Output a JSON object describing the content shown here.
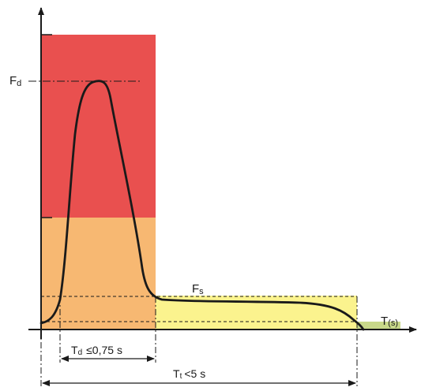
{
  "labels": {
    "fd_main": "F",
    "fd_sub": "d",
    "fs_main": "F",
    "fs_sub": "s",
    "t_axis_main": "T",
    "t_axis_sub": "(s)",
    "td_main": "T",
    "td_sub": "d",
    "td_value": "≤0,75 s",
    "tt_main": "T",
    "tt_sub": "t",
    "tt_value": "<5 s"
  },
  "colors": {
    "red_zone": "#e9504f",
    "orange_zone": "#f7b872",
    "yellow_zone": "#fbf38e",
    "green_zone": "#c8d88a",
    "curve": "#1a1a1a",
    "axis": "#1a1a1a"
  }
}
